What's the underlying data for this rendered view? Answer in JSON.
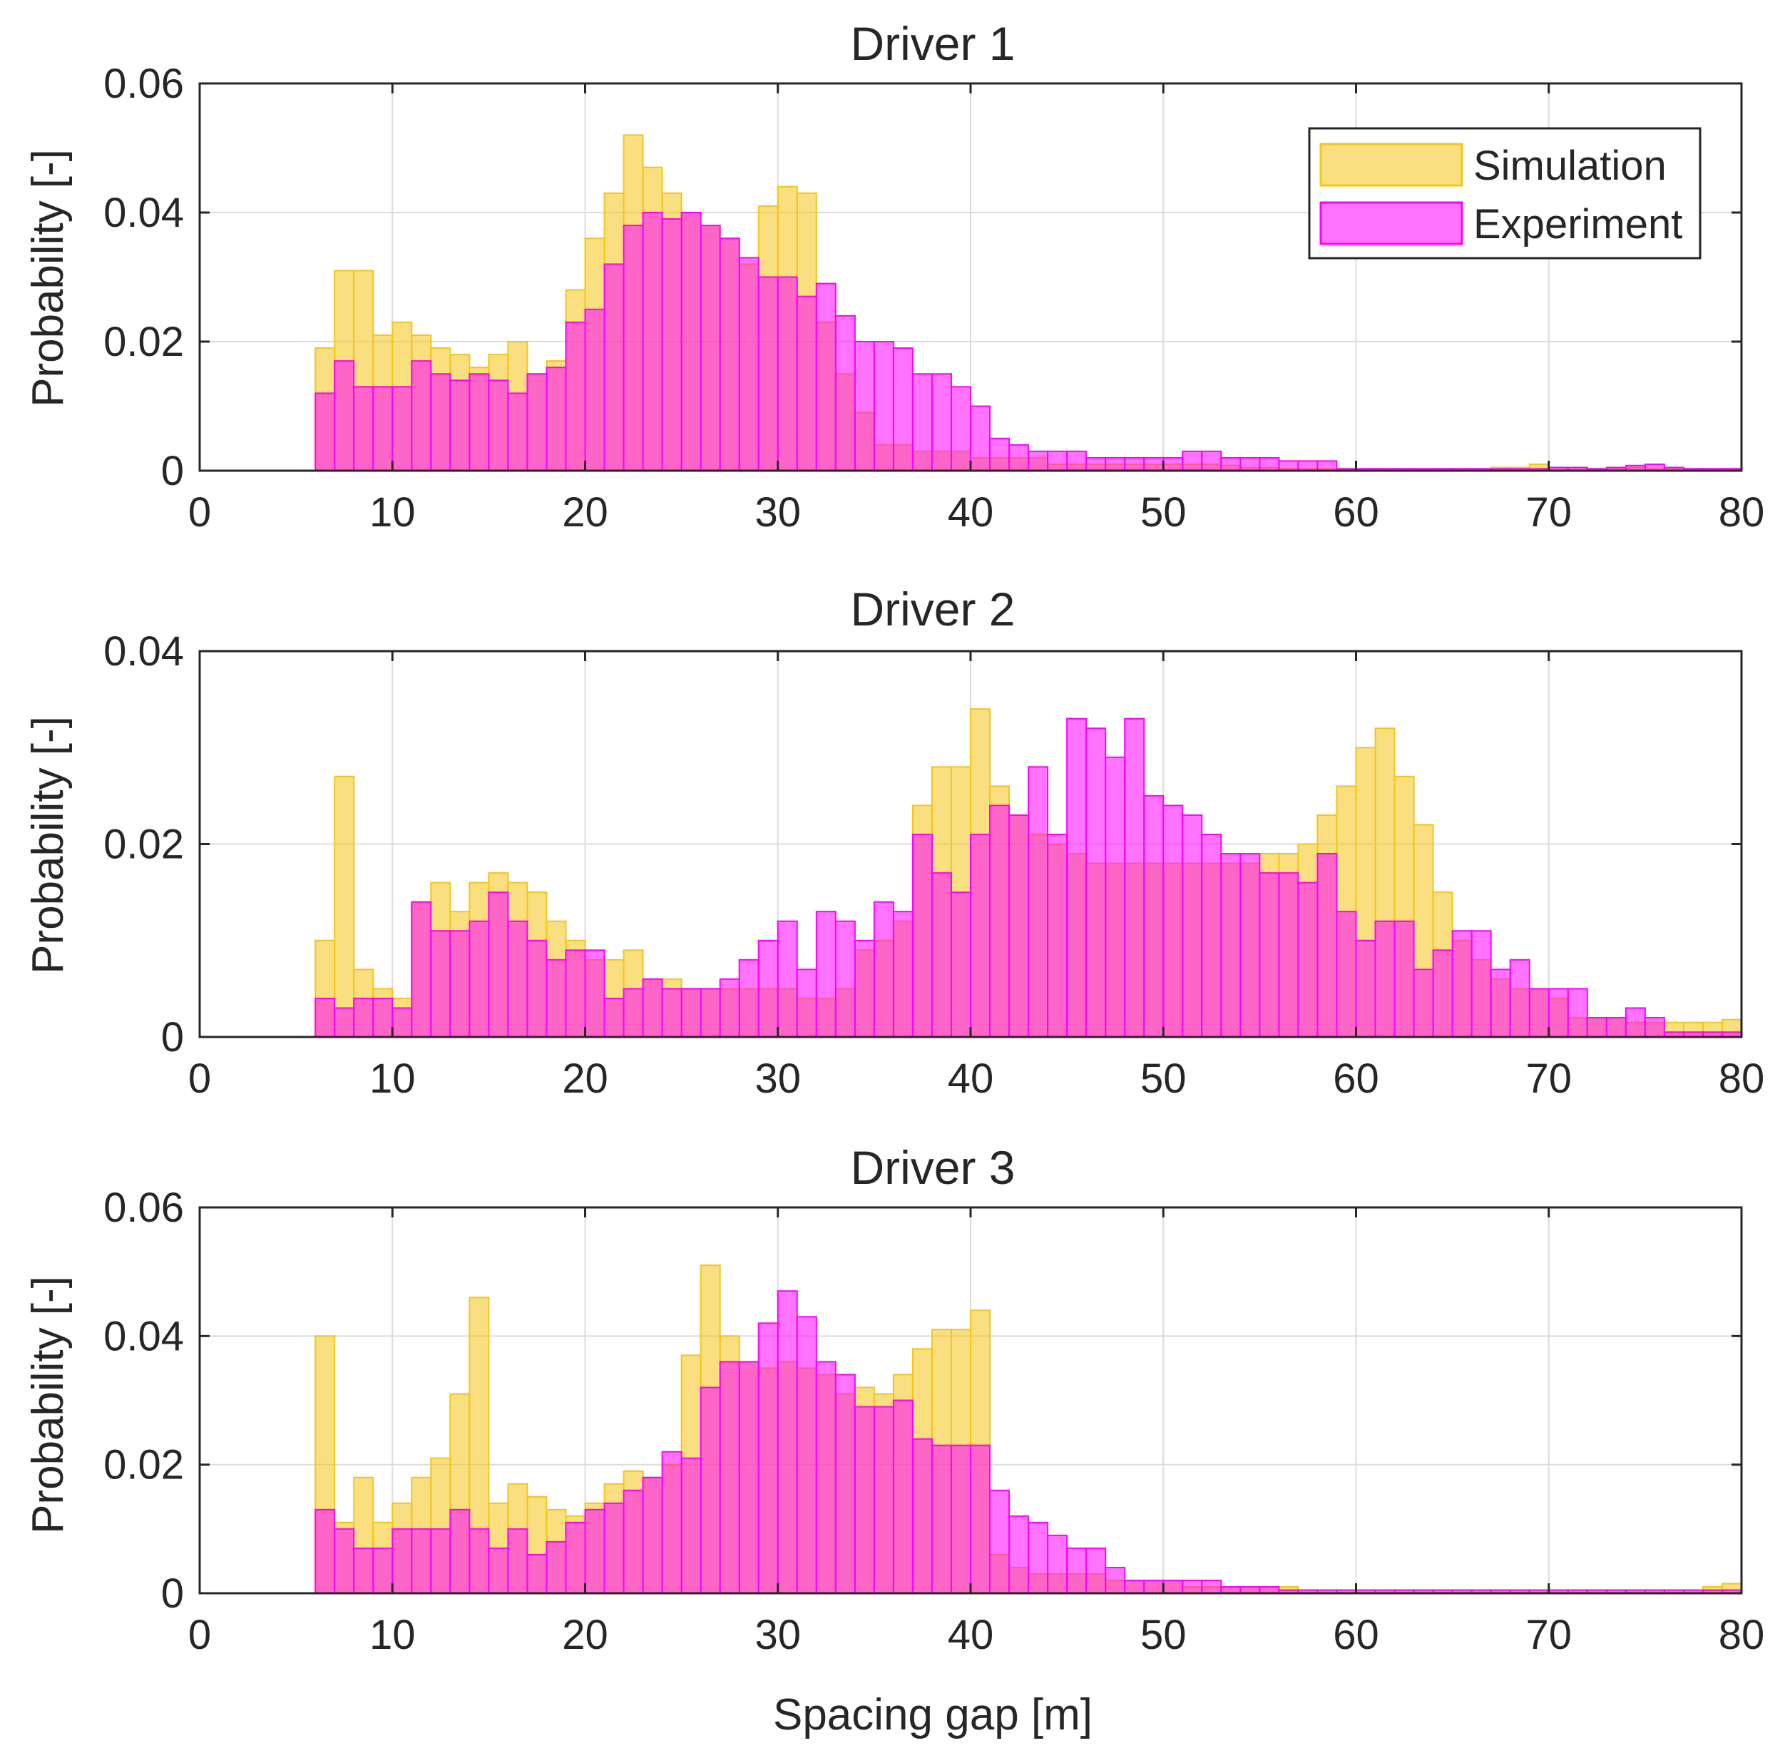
{
  "figure": {
    "xlabel": "Spacing gap [m]",
    "colors": {
      "simulation": "#f5c518",
      "experiment": "#ff00ff",
      "axis": "#262626",
      "grid": "#dcdcdc"
    },
    "legend": {
      "placement": "top-right",
      "entries": [
        "Simulation",
        "Experiment"
      ]
    }
  },
  "chart_data": [
    {
      "type": "bar",
      "title": "Driver 1",
      "xlabel": "",
      "ylabel": "Probability [-]",
      "xlim": [
        0,
        80
      ],
      "ylim": [
        0,
        0.06
      ],
      "x_ticks": [
        0,
        10,
        20,
        30,
        40,
        50,
        60,
        70,
        80
      ],
      "x_tick_labels": [
        "0",
        "10",
        "20",
        "30",
        "40",
        "50",
        "60",
        "70",
        "80"
      ],
      "y_ticks": [
        0,
        0.02,
        0.04,
        0.06
      ],
      "y_tick_labels": [
        "0",
        "0.02",
        "0.04",
        "0.06"
      ],
      "grid": true,
      "bin_width": 1,
      "bin_start": 6,
      "series": [
        {
          "name": "Simulation",
          "values": [
            0.019,
            0.031,
            0.031,
            0.021,
            0.023,
            0.021,
            0.019,
            0.018,
            0.016,
            0.018,
            0.02,
            0.015,
            0.017,
            0.028,
            0.036,
            0.043,
            0.052,
            0.047,
            0.043,
            0.04,
            0.038,
            0.036,
            0.032,
            0.041,
            0.044,
            0.043,
            0.023,
            0.015,
            0.009,
            0.004,
            0.004,
            0.003,
            0.003,
            0.003,
            0.002,
            0.002,
            0.002,
            0.002,
            0.001,
            0.001,
            0.001,
            0.001,
            0.001,
            0.001,
            0.001,
            0.001,
            0.001,
            0.0008,
            0.0005,
            0.0005,
            0.0003,
            0.0003,
            0.0003,
            0.0003,
            0.0003,
            0.0003,
            0.0003,
            0.0003,
            0.0003,
            0.0003,
            0.0003,
            0.0005,
            0.0005,
            0.001,
            0.0005,
            0.0005,
            0.0003,
            0.0003,
            0.0005,
            0.0003,
            0.0003,
            0.0003,
            0.0003,
            0.0003
          ]
        },
        {
          "name": "Experiment",
          "values": [
            0.012,
            0.017,
            0.013,
            0.013,
            0.013,
            0.017,
            0.015,
            0.014,
            0.015,
            0.014,
            0.012,
            0.015,
            0.016,
            0.023,
            0.025,
            0.032,
            0.038,
            0.04,
            0.039,
            0.04,
            0.038,
            0.036,
            0.033,
            0.03,
            0.03,
            0.027,
            0.029,
            0.024,
            0.02,
            0.02,
            0.019,
            0.015,
            0.015,
            0.013,
            0.01,
            0.005,
            0.004,
            0.003,
            0.003,
            0.003,
            0.002,
            0.002,
            0.002,
            0.002,
            0.002,
            0.003,
            0.003,
            0.002,
            0.002,
            0.002,
            0.0015,
            0.0015,
            0.0015,
            0.0003,
            0.0003,
            0.0003,
            0.0003,
            0.0003,
            0.0003,
            0.0003,
            0.0003,
            0.0003,
            0.0003,
            0.0003,
            0.0005,
            0.0005,
            0.0003,
            0.0005,
            0.0008,
            0.001,
            0.0005,
            0.0003,
            0.0003,
            0.0003
          ]
        }
      ]
    },
    {
      "type": "bar",
      "title": "Driver 2",
      "xlabel": "",
      "ylabel": "Probability [-]",
      "xlim": [
        0,
        80
      ],
      "ylim": [
        0,
        0.04
      ],
      "x_ticks": [
        0,
        10,
        20,
        30,
        40,
        50,
        60,
        70,
        80
      ],
      "x_tick_labels": [
        "0",
        "10",
        "20",
        "30",
        "40",
        "50",
        "60",
        "70",
        "80"
      ],
      "y_ticks": [
        0,
        0.02,
        0.04
      ],
      "y_tick_labels": [
        "0",
        "0.02",
        "0.04"
      ],
      "grid": true,
      "bin_width": 1,
      "bin_start": 6,
      "series": [
        {
          "name": "Simulation",
          "values": [
            0.01,
            0.027,
            0.007,
            0.005,
            0.004,
            0.014,
            0.016,
            0.013,
            0.016,
            0.017,
            0.016,
            0.015,
            0.012,
            0.01,
            0.008,
            0.008,
            0.009,
            0.006,
            0.006,
            0.005,
            0.005,
            0.005,
            0.005,
            0.005,
            0.005,
            0.004,
            0.004,
            0.005,
            0.009,
            0.01,
            0.012,
            0.024,
            0.028,
            0.028,
            0.034,
            0.026,
            0.023,
            0.021,
            0.02,
            0.019,
            0.018,
            0.018,
            0.018,
            0.018,
            0.018,
            0.018,
            0.018,
            0.018,
            0.018,
            0.019,
            0.019,
            0.02,
            0.023,
            0.026,
            0.03,
            0.032,
            0.027,
            0.022,
            0.015,
            0.01,
            0.008,
            0.006,
            0.005,
            0.005,
            0.004,
            0.002,
            0.002,
            0.002,
            0.0015,
            0.0015,
            0.0015,
            0.0015,
            0.0015,
            0.0018
          ]
        },
        {
          "name": "Experiment",
          "values": [
            0.004,
            0.003,
            0.004,
            0.004,
            0.003,
            0.014,
            0.011,
            0.011,
            0.012,
            0.015,
            0.012,
            0.01,
            0.008,
            0.009,
            0.009,
            0.004,
            0.005,
            0.006,
            0.005,
            0.005,
            0.005,
            0.006,
            0.008,
            0.01,
            0.012,
            0.007,
            0.013,
            0.012,
            0.01,
            0.014,
            0.013,
            0.021,
            0.017,
            0.015,
            0.021,
            0.024,
            0.023,
            0.028,
            0.021,
            0.033,
            0.032,
            0.029,
            0.033,
            0.025,
            0.024,
            0.023,
            0.021,
            0.019,
            0.019,
            0.017,
            0.017,
            0.016,
            0.019,
            0.013,
            0.01,
            0.012,
            0.012,
            0.007,
            0.009,
            0.011,
            0.011,
            0.007,
            0.008,
            0.005,
            0.005,
            0.005,
            0.002,
            0.002,
            0.003,
            0.002,
            0.0005,
            0.0005,
            0.0005,
            0.0005
          ]
        }
      ]
    },
    {
      "type": "bar",
      "title": "Driver 3",
      "xlabel": "Spacing gap [m]",
      "ylabel": "Probability [-]",
      "xlim": [
        0,
        80
      ],
      "ylim": [
        0,
        0.06
      ],
      "x_ticks": [
        0,
        10,
        20,
        30,
        40,
        50,
        60,
        70,
        80
      ],
      "x_tick_labels": [
        "0",
        "10",
        "20",
        "30",
        "40",
        "50",
        "60",
        "70",
        "80"
      ],
      "y_ticks": [
        0,
        0.02,
        0.04,
        0.06
      ],
      "y_tick_labels": [
        "0",
        "0.02",
        "0.04",
        "0.06"
      ],
      "grid": true,
      "bin_width": 1,
      "bin_start": 6,
      "series": [
        {
          "name": "Simulation",
          "values": [
            0.04,
            0.011,
            0.018,
            0.011,
            0.014,
            0.018,
            0.021,
            0.031,
            0.046,
            0.014,
            0.017,
            0.015,
            0.013,
            0.012,
            0.014,
            0.017,
            0.019,
            0.018,
            0.02,
            0.037,
            0.051,
            0.04,
            0.036,
            0.035,
            0.036,
            0.035,
            0.034,
            0.031,
            0.032,
            0.031,
            0.034,
            0.038,
            0.041,
            0.041,
            0.044,
            0.006,
            0.004,
            0.003,
            0.003,
            0.003,
            0.003,
            0.002,
            0.002,
            0.002,
            0.002,
            0.001,
            0.001,
            0.001,
            0.001,
            0.001,
            0.001,
            0.0005,
            0.0005,
            0.0005,
            0.0005,
            0.0005,
            0.0005,
            0.0005,
            0.0005,
            0.0005,
            0.0005,
            0.0005,
            0.0005,
            0.0005,
            0.0005,
            0.0005,
            0.0005,
            0.0005,
            0.0005,
            0.0005,
            0.0005,
            0.0005,
            0.001,
            0.0015
          ]
        },
        {
          "name": "Experiment",
          "values": [
            0.013,
            0.01,
            0.007,
            0.007,
            0.01,
            0.01,
            0.01,
            0.013,
            0.01,
            0.007,
            0.01,
            0.006,
            0.008,
            0.011,
            0.013,
            0.014,
            0.016,
            0.018,
            0.022,
            0.021,
            0.032,
            0.036,
            0.036,
            0.042,
            0.047,
            0.043,
            0.036,
            0.034,
            0.029,
            0.029,
            0.03,
            0.024,
            0.023,
            0.023,
            0.023,
            0.016,
            0.012,
            0.011,
            0.009,
            0.007,
            0.007,
            0.004,
            0.002,
            0.002,
            0.002,
            0.002,
            0.002,
            0.001,
            0.001,
            0.001,
            0.0005,
            0.0005,
            0.0005,
            0.0005,
            0.0005,
            0.0005,
            0.0005,
            0.0005,
            0.0005,
            0.0005,
            0.0005,
            0.0005,
            0.0005,
            0.0005,
            0.0005,
            0.0005,
            0.0005,
            0.0005,
            0.0005,
            0.0005,
            0.0005,
            0.0005,
            0.0005,
            0.0005
          ]
        }
      ]
    }
  ]
}
